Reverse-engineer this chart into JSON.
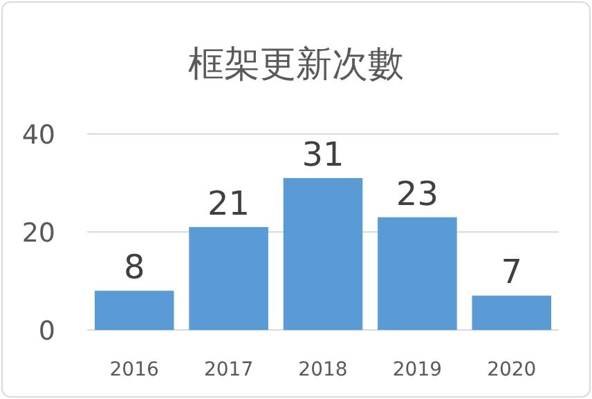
{
  "chart_data": {
    "type": "bar",
    "title": "框架更新次數",
    "categories": [
      "2016",
      "2017",
      "2018",
      "2019",
      "2020"
    ],
    "values": [
      8,
      21,
      31,
      23,
      7
    ],
    "color": "#5b9bd5",
    "ylim": [
      0,
      40
    ],
    "yticks": [
      0,
      20,
      40
    ],
    "grid": "y",
    "data_labels": true
  }
}
